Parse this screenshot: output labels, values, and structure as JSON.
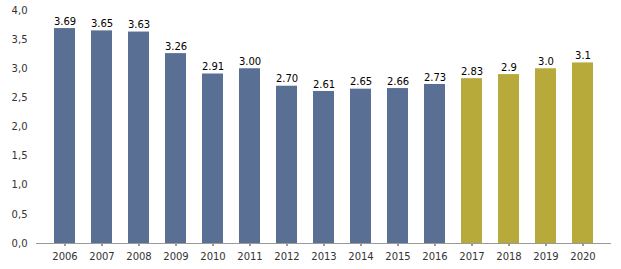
{
  "chart_data": {
    "type": "bar",
    "categories": [
      "2006",
      "2007",
      "2008",
      "2009",
      "2010",
      "2011",
      "2012",
      "2013",
      "2014",
      "2015",
      "2016",
      "2017",
      "2018",
      "2019",
      "2020"
    ],
    "values": [
      3.69,
      3.65,
      3.63,
      3.26,
      2.91,
      3.0,
      2.7,
      2.61,
      2.65,
      2.66,
      2.73,
      2.83,
      2.9,
      3.0,
      3.1
    ],
    "value_labels": [
      "3.69",
      "3.65",
      "3.63",
      "3.26",
      "2.91",
      "3.00",
      "2.70",
      "2.61",
      "2.65",
      "2.66",
      "2.73",
      "2.83",
      "2.9",
      "3.0",
      "3.1"
    ],
    "colors": [
      "#5a6f94",
      "#5a6f94",
      "#5a6f94",
      "#5a6f94",
      "#5a6f94",
      "#5a6f94",
      "#5a6f94",
      "#5a6f94",
      "#5a6f94",
      "#5a6f94",
      "#5a6f94",
      "#b8aa3a",
      "#b8aa3a",
      "#b8aa3a",
      "#b8aa3a"
    ],
    "ylim": [
      0,
      4
    ],
    "yticks": [
      {
        "value": 0,
        "label": "0,0"
      },
      {
        "value": 0.5,
        "label": "0,5"
      },
      {
        "value": 1,
        "label": "1,0"
      },
      {
        "value": 1.5,
        "label": "1,5"
      },
      {
        "value": 2,
        "label": "2,0"
      },
      {
        "value": 2.5,
        "label": "2,5"
      },
      {
        "value": 3,
        "label": "3,0"
      },
      {
        "value": 3.5,
        "label": "3,5"
      },
      {
        "value": 4,
        "label": "4,0"
      }
    ],
    "data_labels": true,
    "grid": false
  }
}
